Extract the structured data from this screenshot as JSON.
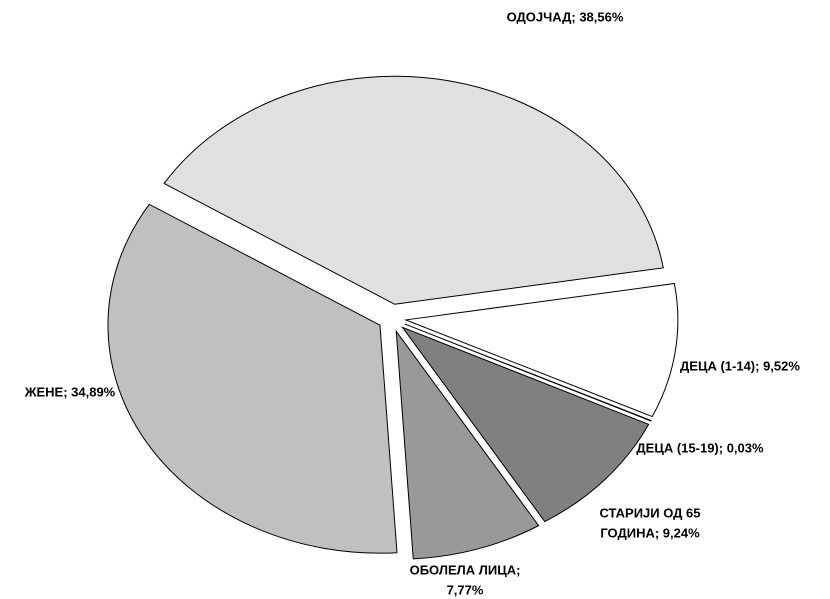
{
  "chart_data": {
    "type": "pie",
    "values": [
      38.56,
      9.52,
      0.03,
      9.24,
      7.77,
      34.89
    ],
    "value_labels": [
      [
        "ОДОЈЧАД; 38,56%"
      ],
      [
        "ДЕЦА (1-14); 9,52%"
      ],
      [
        "ДЕЦА (15-19); 0,03%"
      ],
      [
        "СТАРИЈИ ОД 65",
        "ГОДИНА; 9,24%"
      ],
      [
        "ОБОЛЕЛА ЛИЦА;",
        "7,77%"
      ],
      [
        "ЖЕНЕ; 34,89%"
      ]
    ],
    "colors": [
      "#e0e0e0",
      "#ffffff",
      "#b0b0b0",
      "#808080",
      "#999999",
      "#c0c0c0"
    ]
  }
}
